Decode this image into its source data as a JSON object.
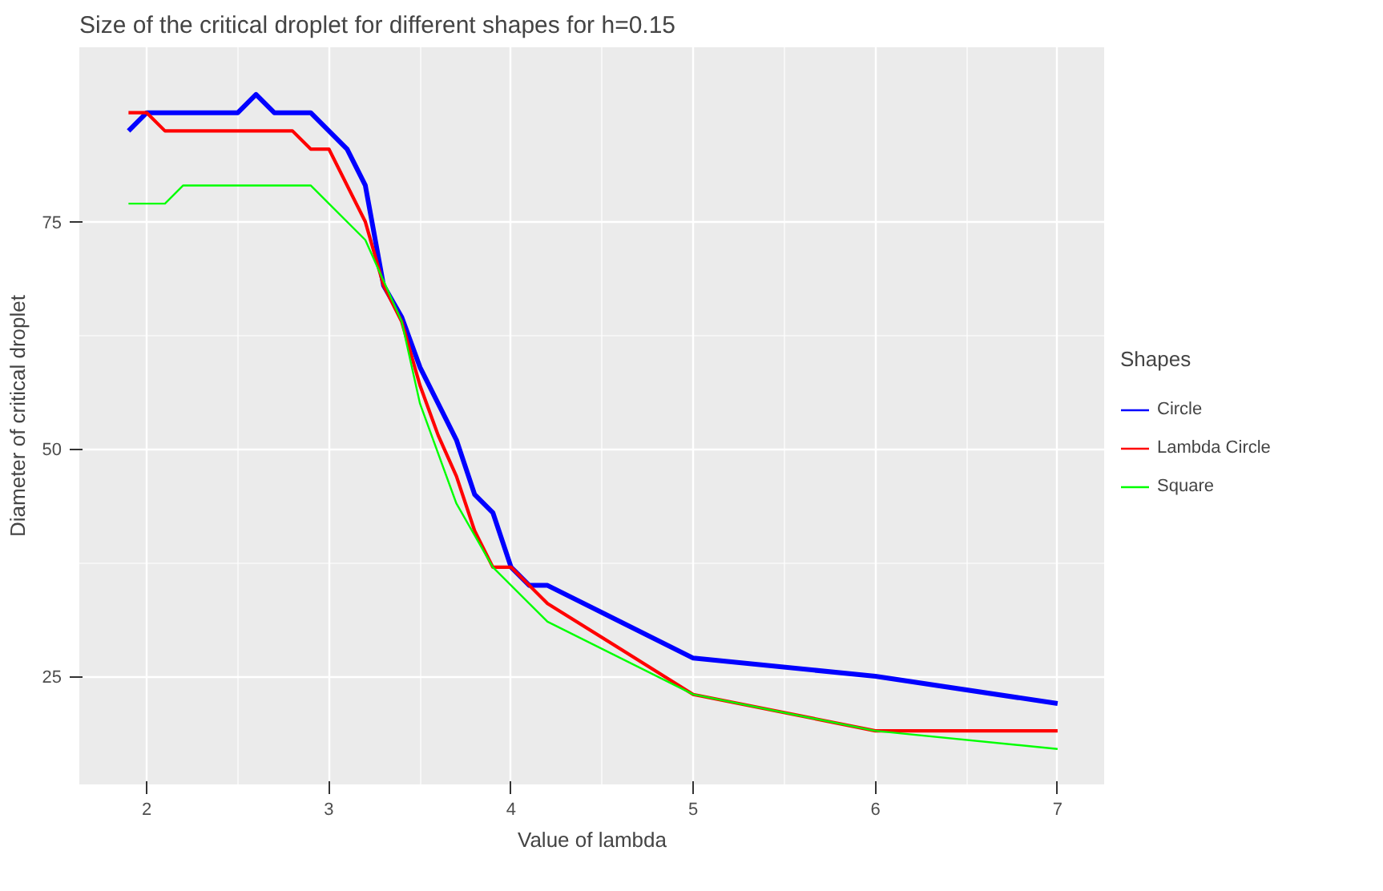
{
  "chart_data": {
    "type": "line",
    "title": "Size of the critical droplet for different shapes for h=0.15",
    "xlabel": "Value of lambda",
    "ylabel": "Diameter of critical droplet",
    "legend_title": "Shapes",
    "xlim": [
      1.63,
      7.26
    ],
    "ylim": [
      13.1,
      94.2
    ],
    "xticks": [
      2,
      3,
      4,
      5,
      6,
      7
    ],
    "yticks": [
      25,
      50,
      75
    ],
    "grid": true,
    "legend": "right",
    "series": [
      {
        "name": "Circle",
        "color": "#0000ff",
        "x": [
          1.9,
          2.0,
          2.5,
          2.6,
          2.7,
          2.9,
          3.0,
          3.1,
          3.2,
          3.3,
          3.4,
          3.5,
          3.7,
          3.8,
          3.9,
          4.0,
          4.1,
          4.2,
          5.0,
          6.0,
          7.0
        ],
        "values": [
          85,
          87,
          87,
          89,
          87,
          87,
          85,
          83,
          79,
          68,
          64.5,
          59,
          51,
          45,
          43,
          37,
          35,
          35,
          27,
          25,
          22
        ]
      },
      {
        "name": "Lambda Circle",
        "color": "#ff0000",
        "x": [
          1.9,
          2.0,
          2.1,
          2.8,
          2.9,
          3.0,
          3.2,
          3.3,
          3.4,
          3.5,
          3.6,
          3.7,
          3.8,
          3.9,
          4.0,
          4.2,
          5.0,
          6.0,
          7.0
        ],
        "values": [
          87,
          87,
          85,
          85,
          83,
          83,
          75,
          68,
          64,
          57,
          51.5,
          47,
          41,
          37,
          37,
          33,
          23,
          19,
          19
        ]
      },
      {
        "name": "Square",
        "color": "#00ff00",
        "x": [
          1.9,
          2.1,
          2.2,
          2.9,
          3.2,
          3.4,
          3.5,
          3.7,
          3.9,
          4.2,
          5.0,
          6.0,
          7.0
        ],
        "values": [
          77,
          77,
          79,
          79,
          73,
          64,
          55,
          44,
          37,
          31,
          23,
          19,
          17
        ]
      }
    ]
  }
}
